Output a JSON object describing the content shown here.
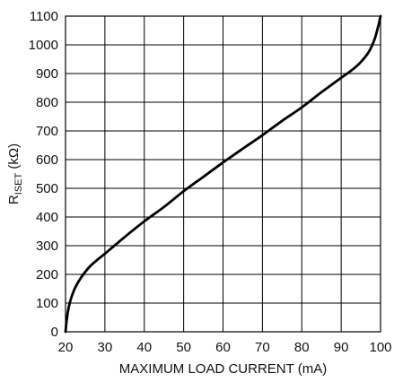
{
  "chart_data": {
    "type": "line",
    "title": "",
    "xlabel": "MAXIMUM LOAD CURRENT (mA)",
    "ylabel": {
      "main": "R",
      "subscript": "ISET",
      "unit": " (kΩ)"
    },
    "xlim": [
      20,
      100
    ],
    "ylim": [
      0,
      1100
    ],
    "xticks": [
      20,
      30,
      40,
      50,
      60,
      70,
      80,
      90,
      100
    ],
    "yticks": [
      0,
      100,
      200,
      300,
      400,
      500,
      600,
      700,
      800,
      900,
      1000,
      1100
    ],
    "grid": true,
    "series": [
      {
        "color": "#000000",
        "points": [
          [
            20.0,
            0
          ],
          [
            20.3,
            40
          ],
          [
            20.8,
            85
          ],
          [
            21.5,
            120
          ],
          [
            22.5,
            155
          ],
          [
            24.0,
            190
          ],
          [
            26.0,
            225
          ],
          [
            28.0,
            250
          ],
          [
            30.0,
            272
          ],
          [
            35.0,
            330
          ],
          [
            40.0,
            385
          ],
          [
            45.0,
            435
          ],
          [
            50.0,
            490
          ],
          [
            55.0,
            540
          ],
          [
            60.0,
            590
          ],
          [
            65.0,
            638
          ],
          [
            70.0,
            685
          ],
          [
            75.0,
            735
          ],
          [
            80.0,
            782
          ],
          [
            85.0,
            835
          ],
          [
            90.0,
            885
          ],
          [
            93.0,
            915
          ],
          [
            95.0,
            940
          ],
          [
            97.0,
            975
          ],
          [
            98.5,
            1020
          ],
          [
            99.5,
            1070
          ],
          [
            100.0,
            1100
          ]
        ]
      }
    ]
  }
}
